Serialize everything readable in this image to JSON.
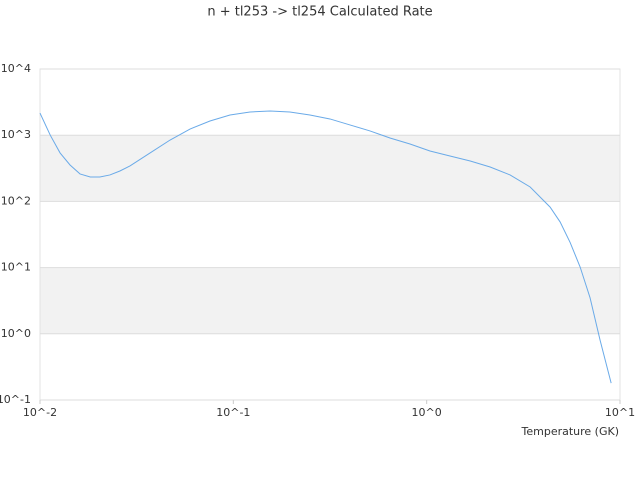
{
  "chart_data": {
    "type": "line",
    "title": "n + tl253 -> tl254 Calculated Rate",
    "xlabel": "Temperature (GK)",
    "x": [
      0.01,
      0.0113,
      0.0127,
      0.0143,
      0.0161,
      0.0182,
      0.0204,
      0.023,
      0.0259,
      0.0292,
      0.0371,
      0.0471,
      0.0597,
      0.0757,
      0.0961,
      0.122,
      0.155,
      0.196,
      0.249,
      0.316,
      0.401,
      0.509,
      0.646,
      0.82,
      1.04,
      1.32,
      1.68,
      2.13,
      2.7,
      3.43,
      4.35,
      4.9,
      5.52,
      6.22,
      7.0,
      7.89,
      9.0
    ],
    "series": [
      {
        "color": "#6aaae8",
        "values": [
          2160,
          1000,
          540,
          355,
          260,
          234,
          234,
          251,
          288,
          343,
          540,
          846,
          1240,
          1640,
          2020,
          2240,
          2320,
          2240,
          2020,
          1760,
          1430,
          1160,
          908,
          736,
          577,
          485,
          408,
          331,
          251,
          165,
          82,
          49,
          24,
          10.2,
          3.5,
          0.8,
          0.18
        ]
      }
    ],
    "xlim": [
      0.01,
      10
    ],
    "ylim": [
      0.1,
      10000
    ],
    "xscale": "log",
    "yscale": "log",
    "xticks": [
      {
        "value": 0.01,
        "label": "10^-2"
      },
      {
        "value": 0.1,
        "label": "10^-1"
      },
      {
        "value": 1,
        "label": "10^0"
      },
      {
        "value": 10,
        "label": "10^1"
      }
    ],
    "yticks": [
      {
        "value": 0.1,
        "label": "10^-1"
      },
      {
        "value": 1,
        "label": "10^0"
      },
      {
        "value": 10,
        "label": "10^1"
      },
      {
        "value": 100,
        "label": "10^2"
      },
      {
        "value": 1000,
        "label": "10^3"
      },
      {
        "value": 10000,
        "label": "10^4"
      }
    ],
    "grid": true,
    "band_color": "#f2f2f2"
  }
}
